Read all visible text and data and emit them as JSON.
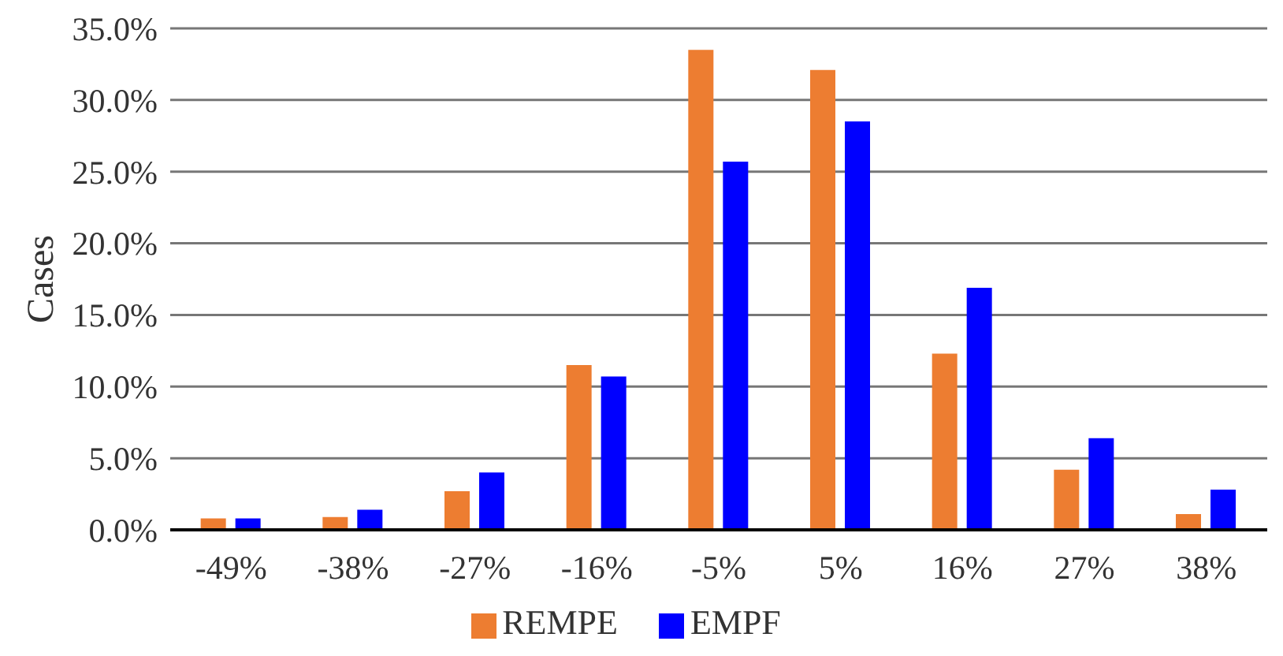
{
  "chart_data": {
    "type": "bar",
    "ylabel": "Cases",
    "categories": [
      "-49%",
      "-38%",
      "-27%",
      "-16%",
      "-5%",
      "5%",
      "16%",
      "27%",
      "38%"
    ],
    "series": [
      {
        "name": "REMPE",
        "color": "#ed7d31",
        "values": [
          0.8,
          0.9,
          2.7,
          11.5,
          33.5,
          32.1,
          12.3,
          4.2,
          1.1
        ]
      },
      {
        "name": "EMPF",
        "color": "#0000ff",
        "values": [
          0.8,
          1.4,
          4.0,
          10.7,
          25.7,
          28.5,
          16.9,
          6.4,
          2.8
        ]
      }
    ],
    "ylim": [
      0,
      35
    ],
    "yticks": [
      {
        "value": 0,
        "label": "0.0%"
      },
      {
        "value": 5,
        "label": "5.0%"
      },
      {
        "value": 10,
        "label": "10.0%"
      },
      {
        "value": 15,
        "label": "15.0%"
      },
      {
        "value": 20,
        "label": "20.0%"
      },
      {
        "value": 25,
        "label": "25.0%"
      },
      {
        "value": 30,
        "label": "30.0%"
      },
      {
        "value": 35,
        "label": "35.0%"
      }
    ],
    "grid": "y",
    "legend": "bottom"
  }
}
